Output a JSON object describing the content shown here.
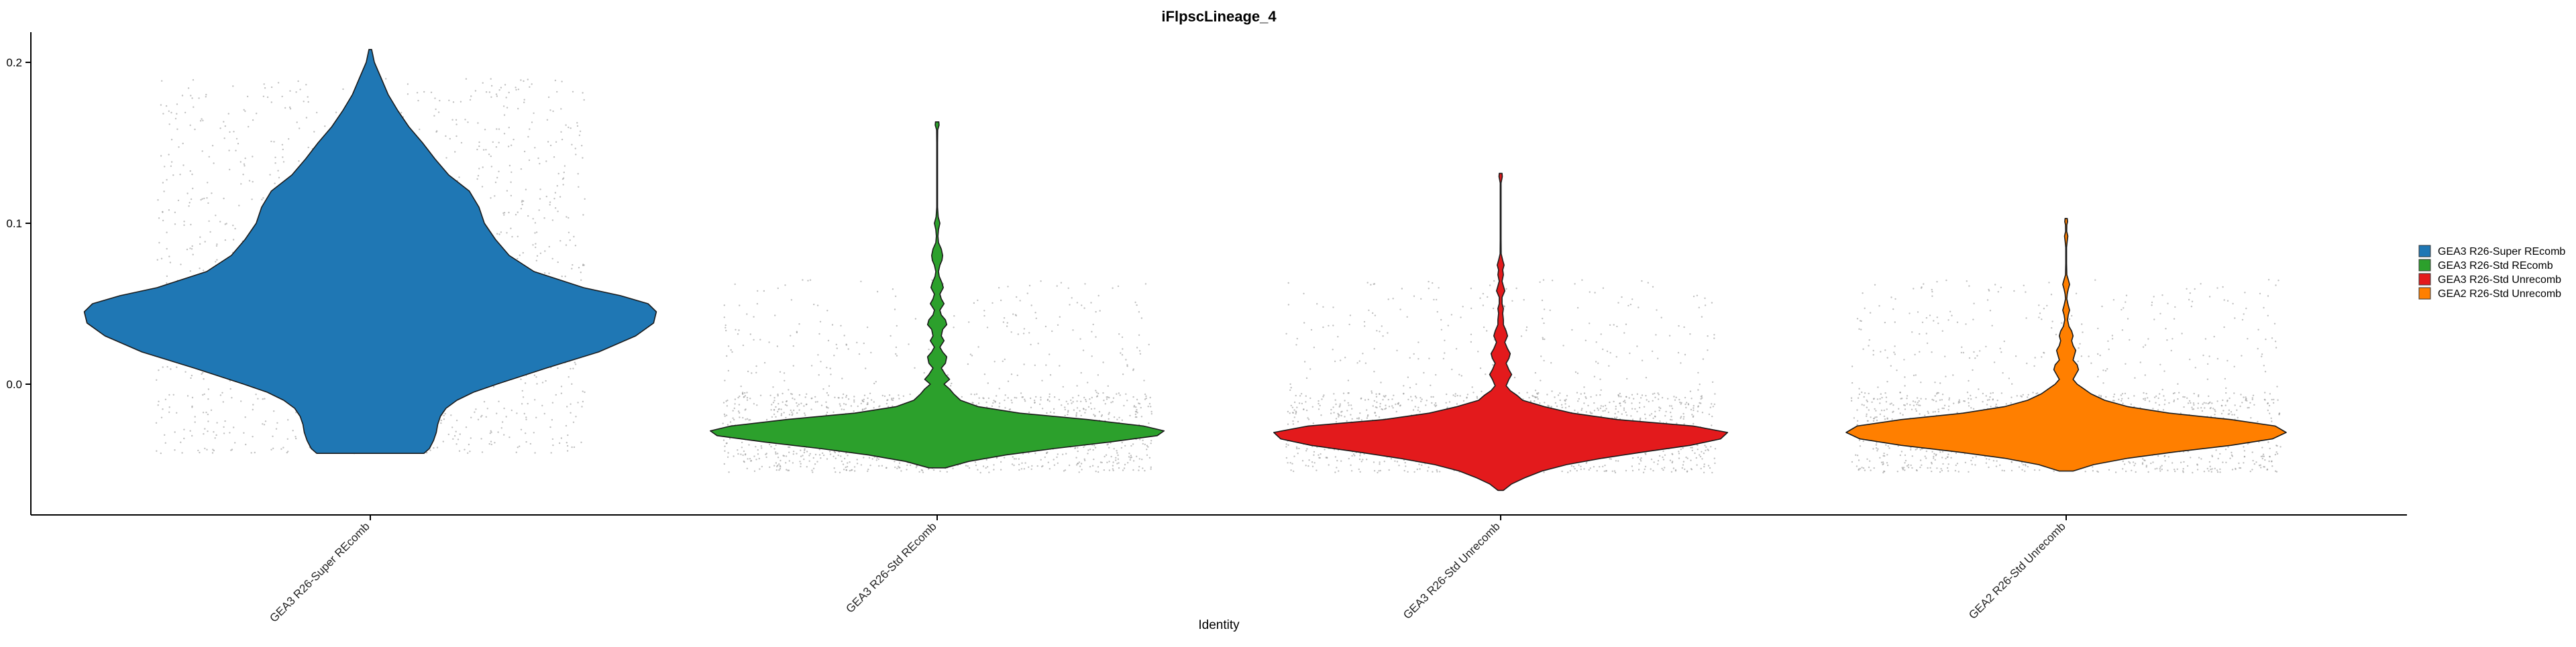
{
  "chart_data": {
    "type": "violin",
    "title": "iFlpscLineage_4",
    "xlabel": "Identity",
    "ylabel": "",
    "ylim": [
      -0.08,
      0.22
    ],
    "yticks": [
      0.0,
      0.1,
      0.2
    ],
    "ytick_labels": [
      "0.0",
      "0.1",
      "0.2"
    ],
    "legend_position": "right",
    "categories": [
      "GEA3 R26-Super REcomb",
      "GEA3 R26-Std REcomb",
      "GEA3 R26-Std Unrecomb",
      "GEA2 R26-Std Unrecomb"
    ],
    "series": [
      {
        "name": "GEA3 R26-Super REcomb",
        "color": "#1f77b4",
        "y_min": -0.043,
        "y_max": 0.208,
        "profile": [
          [
            -0.043,
            0.39
          ],
          [
            -0.04,
            0.43
          ],
          [
            -0.035,
            0.46
          ],
          [
            -0.03,
            0.48
          ],
          [
            -0.025,
            0.49
          ],
          [
            -0.02,
            0.51
          ],
          [
            -0.015,
            0.55
          ],
          [
            -0.01,
            0.63
          ],
          [
            -0.005,
            0.75
          ],
          [
            0.0,
            0.92
          ],
          [
            0.01,
            1.28
          ],
          [
            0.02,
            1.66
          ],
          [
            0.03,
            1.93
          ],
          [
            0.038,
            2.06
          ],
          [
            0.045,
            2.08
          ],
          [
            0.05,
            2.02
          ],
          [
            0.055,
            1.82
          ],
          [
            0.06,
            1.55
          ],
          [
            0.07,
            1.19
          ],
          [
            0.08,
            1.01
          ],
          [
            0.09,
            0.91
          ],
          [
            0.1,
            0.83
          ],
          [
            0.11,
            0.79
          ],
          [
            0.12,
            0.72
          ],
          [
            0.13,
            0.57
          ],
          [
            0.14,
            0.47
          ],
          [
            0.15,
            0.38
          ],
          [
            0.16,
            0.28
          ],
          [
            0.17,
            0.2
          ],
          [
            0.18,
            0.13
          ],
          [
            0.19,
            0.08
          ],
          [
            0.2,
            0.03
          ],
          [
            0.208,
            0.01
          ]
        ]
      },
      {
        "name": "GEA3 R26-Std REcomb",
        "color": "#2ca02c",
        "y_min": -0.052,
        "y_max": 0.163,
        "profile": [
          [
            -0.052,
            0.06
          ],
          [
            -0.048,
            0.23
          ],
          [
            -0.044,
            0.5
          ],
          [
            -0.04,
            0.85
          ],
          [
            -0.036,
            1.25
          ],
          [
            -0.032,
            1.6
          ],
          [
            -0.029,
            1.65
          ],
          [
            -0.026,
            1.5
          ],
          [
            -0.022,
            1.1
          ],
          [
            -0.018,
            0.6
          ],
          [
            -0.014,
            0.3
          ],
          [
            -0.01,
            0.17
          ],
          [
            -0.006,
            0.12
          ],
          [
            -0.003,
            0.09
          ],
          [
            0.0,
            0.05
          ],
          [
            0.003,
            0.09
          ],
          [
            0.006,
            0.06
          ],
          [
            0.01,
            0.03
          ],
          [
            0.013,
            0.06
          ],
          [
            0.017,
            0.07
          ],
          [
            0.02,
            0.04
          ],
          [
            0.023,
            0.02
          ],
          [
            0.027,
            0.05
          ],
          [
            0.03,
            0.03
          ],
          [
            0.034,
            0.04
          ],
          [
            0.037,
            0.07
          ],
          [
            0.04,
            0.06
          ],
          [
            0.043,
            0.03
          ],
          [
            0.046,
            0.02
          ],
          [
            0.05,
            0.05
          ],
          [
            0.053,
            0.03
          ],
          [
            0.056,
            0.02
          ],
          [
            0.06,
            0.045
          ],
          [
            0.063,
            0.035
          ],
          [
            0.067,
            0.015
          ],
          [
            0.07,
            0.01
          ],
          [
            0.074,
            0.02
          ],
          [
            0.077,
            0.035
          ],
          [
            0.08,
            0.04
          ],
          [
            0.084,
            0.03
          ],
          [
            0.088,
            0.01
          ],
          [
            0.092,
            0.006
          ],
          [
            0.096,
            0.01
          ],
          [
            0.1,
            0.02
          ],
          [
            0.104,
            0.008
          ],
          [
            0.11,
            0.003
          ],
          [
            0.13,
            0.003
          ],
          [
            0.15,
            0.003
          ],
          [
            0.158,
            0.004
          ],
          [
            0.161,
            0.014
          ],
          [
            0.163,
            0.012
          ]
        ]
      },
      {
        "name": "GEA3 R26-Std Unrecomb",
        "color": "#e31a1c",
        "y_min": -0.066,
        "y_max": 0.131,
        "profile": [
          [
            -0.066,
            0.02
          ],
          [
            -0.062,
            0.08
          ],
          [
            -0.058,
            0.18
          ],
          [
            -0.054,
            0.3
          ],
          [
            -0.05,
            0.48
          ],
          [
            -0.046,
            0.74
          ],
          [
            -0.042,
            1.05
          ],
          [
            -0.038,
            1.38
          ],
          [
            -0.034,
            1.6
          ],
          [
            -0.03,
            1.65
          ],
          [
            -0.026,
            1.4
          ],
          [
            -0.022,
            0.85
          ],
          [
            -0.018,
            0.52
          ],
          [
            -0.014,
            0.32
          ],
          [
            -0.01,
            0.16
          ],
          [
            -0.007,
            0.12
          ],
          [
            -0.004,
            0.07
          ],
          [
            -0.001,
            0.04
          ],
          [
            0.003,
            0.06
          ],
          [
            0.006,
            0.08
          ],
          [
            0.009,
            0.06
          ],
          [
            0.013,
            0.04
          ],
          [
            0.016,
            0.06
          ],
          [
            0.019,
            0.07
          ],
          [
            0.022,
            0.05
          ],
          [
            0.026,
            0.03
          ],
          [
            0.03,
            0.05
          ],
          [
            0.033,
            0.04
          ],
          [
            0.037,
            0.02
          ],
          [
            0.04,
            0.02
          ],
          [
            0.044,
            0.015
          ],
          [
            0.047,
            0.02
          ],
          [
            0.05,
            0.01
          ],
          [
            0.054,
            0.01
          ],
          [
            0.058,
            0.03
          ],
          [
            0.061,
            0.02
          ],
          [
            0.064,
            0.01
          ],
          [
            0.068,
            0.02
          ],
          [
            0.071,
            0.015
          ],
          [
            0.074,
            0.025
          ],
          [
            0.077,
            0.015
          ],
          [
            0.081,
            0.004
          ],
          [
            0.09,
            0.003
          ],
          [
            0.11,
            0.003
          ],
          [
            0.125,
            0.003
          ],
          [
            0.129,
            0.012
          ],
          [
            0.131,
            0.01
          ]
        ]
      },
      {
        "name": "GEA2 R26-Std Unrecomb",
        "color": "#ff7f00",
        "y_min": -0.054,
        "y_max": 0.103,
        "profile": [
          [
            -0.054,
            0.05
          ],
          [
            -0.05,
            0.2
          ],
          [
            -0.046,
            0.45
          ],
          [
            -0.042,
            0.8
          ],
          [
            -0.038,
            1.2
          ],
          [
            -0.034,
            1.5
          ],
          [
            -0.03,
            1.6
          ],
          [
            -0.026,
            1.52
          ],
          [
            -0.022,
            1.2
          ],
          [
            -0.018,
            0.75
          ],
          [
            -0.014,
            0.45
          ],
          [
            -0.01,
            0.28
          ],
          [
            -0.006,
            0.18
          ],
          [
            -0.003,
            0.13
          ],
          [
            0.0,
            0.08
          ],
          [
            0.003,
            0.05
          ],
          [
            0.006,
            0.07
          ],
          [
            0.009,
            0.09
          ],
          [
            0.012,
            0.08
          ],
          [
            0.015,
            0.05
          ],
          [
            0.018,
            0.06
          ],
          [
            0.021,
            0.07
          ],
          [
            0.024,
            0.05
          ],
          [
            0.027,
            0.04
          ],
          [
            0.03,
            0.05
          ],
          [
            0.033,
            0.04
          ],
          [
            0.036,
            0.02
          ],
          [
            0.04,
            0.01
          ],
          [
            0.043,
            0.015
          ],
          [
            0.046,
            0.025
          ],
          [
            0.049,
            0.015
          ],
          [
            0.053,
            0.005
          ],
          [
            0.056,
            0.008
          ],
          [
            0.059,
            0.015
          ],
          [
            0.062,
            0.025
          ],
          [
            0.065,
            0.015
          ],
          [
            0.068,
            0.005
          ],
          [
            0.075,
            0.003
          ],
          [
            0.085,
            0.003
          ],
          [
            0.089,
            0.008
          ],
          [
            0.092,
            0.012
          ],
          [
            0.095,
            0.004
          ],
          [
            0.099,
            0.005
          ],
          [
            0.101,
            0.01
          ],
          [
            0.103,
            0.008
          ]
        ]
      }
    ]
  }
}
